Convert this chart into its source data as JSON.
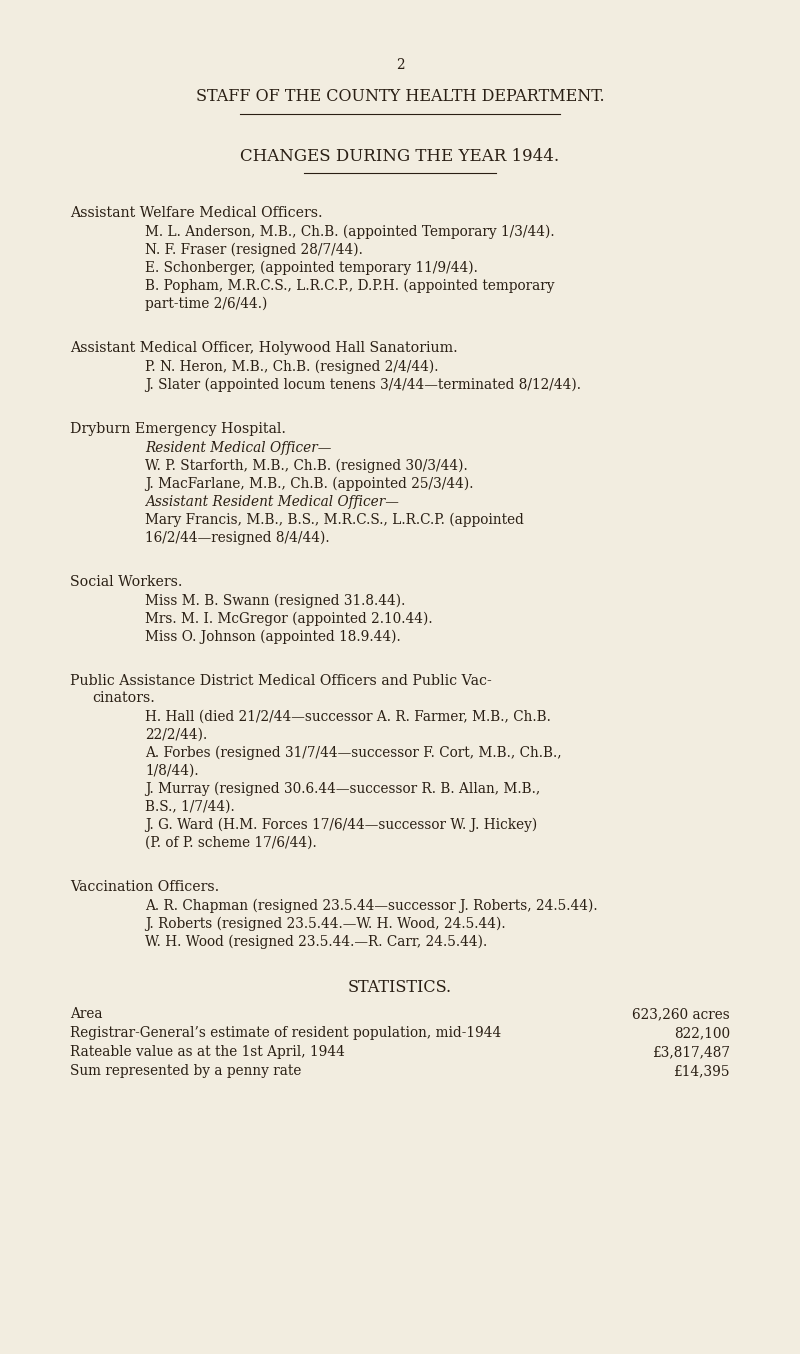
{
  "bg_color": "#f2ede0",
  "text_color": "#2a1f14",
  "page_number": "2",
  "title1": "STAFF OF THE COUNTY HEALTH DEPARTMENT.",
  "title2": "CHANGES DURING THE YEAR 1944.",
  "sections": [
    {
      "heading": "Assistant Welfare Medical Officers.",
      "heading_style": "smallcaps",
      "items": [
        {
          "text": "M. L. Anderson, M.B., Ch.B. (appointed Temporary 1/3/44).",
          "style": "normal"
        },
        {
          "text": "N. F. Fraser (resigned 28/7/44).",
          "style": "normal"
        },
        {
          "text": "E. Schonberger, (appointed temporary 11/9/44).",
          "style": "normal"
        },
        {
          "text": "B. Popham, M.R.C.S., L.R.C.P., D.P.H. (appointed temporary",
          "style": "normal"
        },
        {
          "text": "part-time 2/6/44.)",
          "style": "normal"
        }
      ]
    },
    {
      "heading": "Assistant Medical Officer, Holywood Hall Sanatorium.",
      "heading_style": "smallcaps",
      "items": [
        {
          "text": "P. N. Heron, M.B., Ch.B. (resigned 2/4/44).",
          "style": "normal"
        },
        {
          "text": "J. Slater (appointed locum tenens 3/4/44—terminated 8/12/44).",
          "style": "normal"
        }
      ]
    },
    {
      "heading": "Dryburn Emergency Hospital.",
      "heading_style": "smallcaps",
      "items": [
        {
          "text": "Resident Medical Officer—",
          "style": "italic"
        },
        {
          "text": "W. P. Starforth, M.B., Ch.B. (resigned 30/3/44).",
          "style": "normal"
        },
        {
          "text": "J. MacFarlane, M.B., Ch.B. (appointed 25/3/44).",
          "style": "normal"
        },
        {
          "text": "Assistant Resident Medical Officer—",
          "style": "italic"
        },
        {
          "text": "Mary Francis, M.B., B.S., M.R.C.S., L.R.C.P. (appointed",
          "style": "normal"
        },
        {
          "text": "16/2/44—resigned 8/4/44).",
          "style": "normal"
        }
      ]
    },
    {
      "heading": "Social Workers.",
      "heading_style": "smallcaps",
      "items": [
        {
          "text": "Miss M. B. Swann (resigned 31.8.44).",
          "style": "normal"
        },
        {
          "text": "Mrs. M. I. McGregor (appointed 2.10.44).",
          "style": "normal"
        },
        {
          "text": "Miss O. Johnson (appointed 18.9.44).",
          "style": "normal"
        }
      ]
    },
    {
      "heading": "Public Assistance District Medical Officers and Public Vac-",
      "heading_line2": "cinators.",
      "heading_style": "smallcaps",
      "items": [
        {
          "text": "H. Hall (died 21/2/44—successor A. R. Farmer, M.B., Ch.B.",
          "style": "normal"
        },
        {
          "text": "22/2/44).",
          "style": "normal"
        },
        {
          "text": "A. Forbes (resigned 31/7/44—successor F. Cort, M.B., Ch.B.,",
          "style": "normal"
        },
        {
          "text": "1/8/44).",
          "style": "normal"
        },
        {
          "text": "J. Murray (resigned 30.6.44—successor R. B. Allan, M.B.,",
          "style": "normal"
        },
        {
          "text": "B.S., 1/7/44).",
          "style": "normal"
        },
        {
          "text": "J. G. Ward (H.M. Forces 17/6/44—successor W. J. Hickey)",
          "style": "normal"
        },
        {
          "text": "(P. of P. scheme 17/6/44).",
          "style": "normal"
        }
      ]
    },
    {
      "heading": "Vaccination Officers.",
      "heading_style": "smallcaps",
      "items": [
        {
          "text": "A. R. Chapman (resigned 23.5.44—successor J. Roberts, 24.5.44).",
          "style": "normal"
        },
        {
          "text": "J. Roberts (resigned 23.5.44.—W. H. Wood, 24.5.44).",
          "style": "normal"
        },
        {
          "text": "W. H. Wood (resigned 23.5.44.—R. Carr, 24.5.44).",
          "style": "normal"
        }
      ]
    }
  ],
  "statistics_title": "STATISTICS.",
  "statistics": [
    {
      "label": "Area",
      "dot_fill": "....  .....  .....  .....  .....  .....  .....",
      "value": "623,260 acres"
    },
    {
      "label": "Registrar-General’s estimate of resident population, mid-1944",
      "dot_fill": "",
      "value": "822,100"
    },
    {
      "label": "Rateable value as at the 1st April, 1944",
      "dot_fill": "....  .....  .....  .....",
      "value": "£3,817,487"
    },
    {
      "label": "Sum represented by a penny rate",
      "dot_fill": ".....  .....  .....  .....",
      "value": "£14,395"
    }
  ],
  "figsize": [
    8.0,
    13.54
  ],
  "dpi": 100
}
